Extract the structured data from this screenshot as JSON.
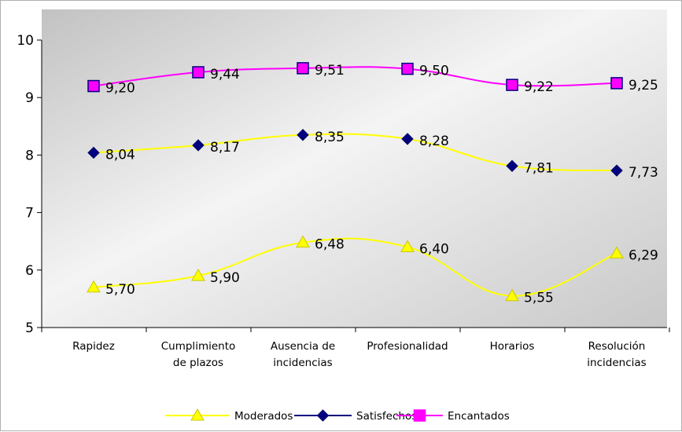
{
  "chart_data": {
    "type": "line",
    "categories": [
      [
        "Rapidez"
      ],
      [
        "Cumplimiento",
        "de plazos"
      ],
      [
        "Ausencia de",
        "incidencias"
      ],
      [
        "Profesionalidad"
      ],
      [
        "Horarios"
      ],
      [
        "Resolución",
        "incidencias"
      ]
    ],
    "series": [
      {
        "name": "Moderados",
        "values": [
          5.7,
          5.9,
          6.48,
          6.4,
          5.55,
          6.29
        ],
        "labels": [
          "5,70",
          "5,90",
          "6,48",
          "6,40",
          "5,55",
          "6,29"
        ],
        "line_color": "#FFFF00",
        "marker": "triangle",
        "marker_fill": "#FFFF00",
        "marker_stroke": "#C8C800"
      },
      {
        "name": "Satisfechos",
        "values": [
          8.04,
          8.17,
          8.35,
          8.28,
          7.81,
          7.73
        ],
        "labels": [
          "8,04",
          "8,17",
          "8,35",
          "8,28",
          "7,81",
          "7,73"
        ],
        "line_color": "#FFFF00",
        "marker": "diamond",
        "marker_fill": "#000080",
        "marker_stroke": "#000066"
      },
      {
        "name": "Encantados",
        "values": [
          9.2,
          9.44,
          9.51,
          9.5,
          9.22,
          9.25
        ],
        "labels": [
          "9,20",
          "9,44",
          "9,51",
          "9,50",
          "9,22",
          "9,25"
        ],
        "line_color": "#FF00FF",
        "marker": "square",
        "marker_fill": "#FF00FF",
        "marker_stroke": "#000080"
      }
    ],
    "legend_series": [
      {
        "name": "Moderados",
        "line_color": "#FFFF00",
        "marker": "triangle",
        "marker_fill": "#FFFF00",
        "marker_stroke": "#C8C800"
      },
      {
        "name": "Satisfechos",
        "line_color": "#000080",
        "marker": "diamond",
        "marker_fill": "#000080",
        "marker_stroke": "#000066"
      },
      {
        "name": "Encantados",
        "line_color": "#FF00FF",
        "marker": "square",
        "marker_fill": "#FF00FF",
        "marker_stroke": "#FF00FF"
      }
    ],
    "y_ticks": [
      5,
      6,
      7,
      8,
      9,
      10
    ],
    "ylim": [
      5,
      10
    ],
    "grid": false,
    "legend_position": "bottom-center",
    "plot_background": "gradient-gray"
  }
}
